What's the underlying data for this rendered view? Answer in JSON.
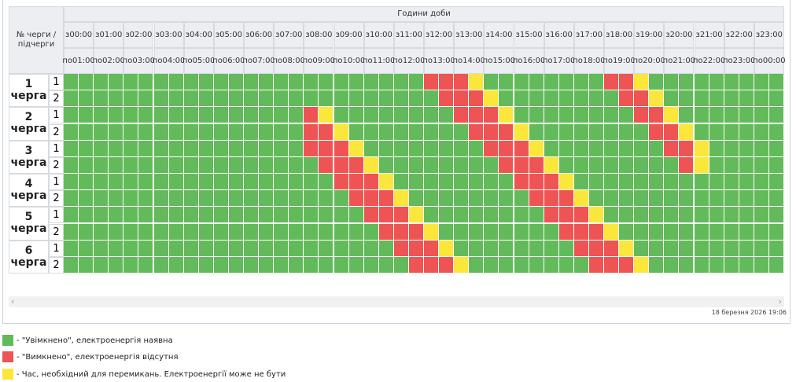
{
  "table": {
    "corner": "№ черги / підчерги",
    "hours_title": "Години доби",
    "from_prefix": "з",
    "to_prefix": "по",
    "from_times": [
      "00:00",
      "01:00",
      "02:00",
      "03:00",
      "04:00",
      "05:00",
      "06:00",
      "07:00",
      "08:00",
      "09:00",
      "10:00",
      "11:00",
      "12:00",
      "13:00",
      "14:00",
      "15:00",
      "16:00",
      "17:00",
      "18:00",
      "19:00",
      "20:00",
      "21:00",
      "22:00",
      "23:00"
    ],
    "to_times": [
      "01:00",
      "02:00",
      "03:00",
      "04:00",
      "05:00",
      "06:00",
      "07:00",
      "08:00",
      "09:00",
      "10:00",
      "11:00",
      "12:00",
      "13:00",
      "14:00",
      "15:00",
      "16:00",
      "17:00",
      "18:00",
      "19:00",
      "20:00",
      "21:00",
      "22:00",
      "23:00",
      "00:00"
    ],
    "queues": [
      {
        "label": "1 черга",
        "subqueues": [
          {
            "label": "1",
            "cells": [
              0,
              0,
              0,
              0,
              0,
              0,
              0,
              0,
              0,
              0,
              0,
              0,
              0,
              0,
              0,
              0,
              0,
              0,
              0,
              0,
              0,
              0,
              0,
              0,
              1,
              1,
              1,
              2,
              0,
              0,
              0,
              0,
              0,
              0,
              0,
              0,
              1,
              1,
              2,
              0,
              0,
              0,
              0,
              0,
              0,
              0,
              0,
              0
            ]
          },
          {
            "label": "2",
            "cells": [
              0,
              0,
              0,
              0,
              0,
              0,
              0,
              0,
              0,
              0,
              0,
              0,
              0,
              0,
              0,
              0,
              0,
              0,
              0,
              0,
              0,
              0,
              0,
              0,
              0,
              1,
              1,
              1,
              2,
              0,
              0,
              0,
              0,
              0,
              0,
              0,
              0,
              1,
              1,
              2,
              0,
              0,
              0,
              0,
              0,
              0,
              0,
              0
            ]
          }
        ]
      },
      {
        "label": "2 черга",
        "subqueues": [
          {
            "label": "1",
            "cells": [
              0,
              0,
              0,
              0,
              0,
              0,
              0,
              0,
              0,
              0,
              0,
              0,
              0,
              0,
              0,
              0,
              1,
              2,
              0,
              0,
              0,
              0,
              0,
              0,
              0,
              0,
              1,
              1,
              1,
              2,
              0,
              0,
              0,
              0,
              0,
              0,
              0,
              0,
              1,
              1,
              2,
              0,
              0,
              0,
              0,
              0,
              0,
              0
            ]
          },
          {
            "label": "2",
            "cells": [
              0,
              0,
              0,
              0,
              0,
              0,
              0,
              0,
              0,
              0,
              0,
              0,
              0,
              0,
              0,
              0,
              1,
              1,
              2,
              0,
              0,
              0,
              0,
              0,
              0,
              0,
              0,
              1,
              1,
              1,
              2,
              0,
              0,
              0,
              0,
              0,
              0,
              0,
              0,
              1,
              1,
              2,
              0,
              0,
              0,
              0,
              0,
              0
            ]
          }
        ]
      },
      {
        "label": "3 черга",
        "subqueues": [
          {
            "label": "1",
            "cells": [
              0,
              0,
              0,
              0,
              0,
              0,
              0,
              0,
              0,
              0,
              0,
              0,
              0,
              0,
              0,
              0,
              1,
              1,
              1,
              2,
              0,
              0,
              0,
              0,
              0,
              0,
              0,
              0,
              1,
              1,
              1,
              2,
              0,
              0,
              0,
              0,
              0,
              0,
              0,
              0,
              1,
              1,
              2,
              0,
              0,
              0,
              0,
              0
            ]
          },
          {
            "label": "2",
            "cells": [
              0,
              0,
              0,
              0,
              0,
              0,
              0,
              0,
              0,
              0,
              0,
              0,
              0,
              0,
              0,
              0,
              0,
              1,
              1,
              1,
              2,
              0,
              0,
              0,
              0,
              0,
              0,
              0,
              0,
              1,
              1,
              1,
              2,
              0,
              0,
              0,
              0,
              0,
              0,
              0,
              0,
              1,
              2,
              0,
              0,
              0,
              0,
              0
            ]
          }
        ]
      },
      {
        "label": "4 черга",
        "subqueues": [
          {
            "label": "1",
            "cells": [
              0,
              0,
              0,
              0,
              0,
              0,
              0,
              0,
              0,
              0,
              0,
              0,
              0,
              0,
              0,
              0,
              0,
              0,
              1,
              1,
              1,
              2,
              0,
              0,
              0,
              0,
              0,
              0,
              0,
              0,
              1,
              1,
              1,
              2,
              0,
              0,
              0,
              0,
              0,
              0,
              0,
              0,
              0,
              0,
              0,
              0,
              0,
              0
            ]
          },
          {
            "label": "2",
            "cells": [
              0,
              0,
              0,
              0,
              0,
              0,
              0,
              0,
              0,
              0,
              0,
              0,
              0,
              0,
              0,
              0,
              0,
              0,
              0,
              1,
              1,
              1,
              2,
              0,
              0,
              0,
              0,
              0,
              0,
              0,
              0,
              1,
              1,
              1,
              2,
              0,
              0,
              0,
              0,
              0,
              0,
              0,
              0,
              0,
              0,
              0,
              0,
              0
            ]
          }
        ]
      },
      {
        "label": "5 черга",
        "subqueues": [
          {
            "label": "1",
            "cells": [
              0,
              0,
              0,
              0,
              0,
              0,
              0,
              0,
              0,
              0,
              0,
              0,
              0,
              0,
              0,
              0,
              0,
              0,
              0,
              0,
              1,
              1,
              1,
              2,
              0,
              0,
              0,
              0,
              0,
              0,
              0,
              0,
              1,
              1,
              1,
              2,
              0,
              0,
              0,
              0,
              0,
              0,
              0,
              0,
              0,
              0,
              0,
              0
            ]
          },
          {
            "label": "2",
            "cells": [
              0,
              0,
              0,
              0,
              0,
              0,
              0,
              0,
              0,
              0,
              0,
              0,
              0,
              0,
              0,
              0,
              0,
              0,
              0,
              0,
              0,
              1,
              1,
              1,
              2,
              0,
              0,
              0,
              0,
              0,
              0,
              0,
              0,
              1,
              1,
              1,
              2,
              0,
              0,
              0,
              0,
              0,
              0,
              0,
              0,
              0,
              0,
              0
            ]
          }
        ]
      },
      {
        "label": "6 черга",
        "subqueues": [
          {
            "label": "1",
            "cells": [
              0,
              0,
              0,
              0,
              0,
              0,
              0,
              0,
              0,
              0,
              0,
              0,
              0,
              0,
              0,
              0,
              0,
              0,
              0,
              0,
              0,
              0,
              1,
              1,
              1,
              2,
              0,
              0,
              0,
              0,
              0,
              0,
              0,
              0,
              1,
              1,
              1,
              2,
              0,
              0,
              0,
              0,
              0,
              0,
              0,
              0,
              0,
              0
            ]
          },
          {
            "label": "2",
            "cells": [
              0,
              0,
              0,
              0,
              0,
              0,
              0,
              0,
              0,
              0,
              0,
              0,
              0,
              0,
              0,
              0,
              0,
              0,
              0,
              0,
              0,
              0,
              0,
              1,
              1,
              1,
              2,
              0,
              0,
              0,
              0,
              0,
              0,
              0,
              0,
              1,
              1,
              1,
              2,
              0,
              0,
              0,
              0,
              0,
              0,
              0,
              0,
              0
            ]
          }
        ]
      }
    ]
  },
  "timestamp": "18 березня 2026 19:06",
  "legend": [
    {
      "color": "#63ba5a",
      "text": "- \"Увімкнено\", електроенергія наявна"
    },
    {
      "color": "#ee5454",
      "text": "- \"Вимкнено\", електроенергія відсутня"
    },
    {
      "color": "#fbe73c",
      "text": "- Час, необхідний для перемикань. Електроенергії може не бути"
    }
  ]
}
